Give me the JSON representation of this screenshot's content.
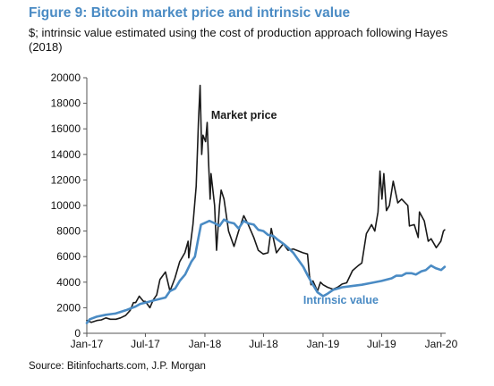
{
  "figure": {
    "title": "Figure 9: Bitcoin market price and intrinsic value",
    "subtitle": "$; intrinsic value estimated using the cost of production approach following Hayes (2018)",
    "source": "Source: Bitinfocharts.com, J.P. Morgan"
  },
  "chart_data": {
    "type": "line",
    "title": "Figure 9: Bitcoin market price and intrinsic value",
    "subtitle": "$; intrinsic value estimated using the cost of production approach following Hayes (2018)",
    "xlabel": "",
    "ylabel": "",
    "x_ticks": [
      "Jan-17",
      "Jul-17",
      "Jan-18",
      "Jul-18",
      "Jan-19",
      "Jul-19",
      "Jan-20"
    ],
    "x_range": [
      "2017-01-01",
      "2020-01-15"
    ],
    "y_ticks": [
      0,
      2000,
      4000,
      6000,
      8000,
      10000,
      12000,
      14000,
      16000,
      18000,
      20000
    ],
    "ylim": [
      0,
      20000
    ],
    "grid": false,
    "legend": "inline labels",
    "series": [
      {
        "name": "Market price",
        "color": "#1a1a1a",
        "points": [
          [
            "2017-01-01",
            1000
          ],
          [
            "2017-01-15",
            850
          ],
          [
            "2017-02-01",
            1000
          ],
          [
            "2017-02-15",
            1050
          ],
          [
            "2017-03-01",
            1200
          ],
          [
            "2017-03-15",
            1100
          ],
          [
            "2017-04-01",
            1100
          ],
          [
            "2017-04-15",
            1200
          ],
          [
            "2017-05-01",
            1400
          ],
          [
            "2017-05-15",
            1800
          ],
          [
            "2017-05-25",
            2400
          ],
          [
            "2017-06-01",
            2400
          ],
          [
            "2017-06-12",
            2900
          ],
          [
            "2017-06-25",
            2500
          ],
          [
            "2017-07-01",
            2500
          ],
          [
            "2017-07-15",
            2000
          ],
          [
            "2017-07-25",
            2600
          ],
          [
            "2017-08-05",
            3000
          ],
          [
            "2017-08-15",
            4200
          ],
          [
            "2017-09-01",
            4800
          ],
          [
            "2017-09-15",
            3300
          ],
          [
            "2017-09-30",
            4300
          ],
          [
            "2017-10-15",
            5600
          ],
          [
            "2017-10-31",
            6300
          ],
          [
            "2017-11-10",
            7200
          ],
          [
            "2017-11-12",
            5900
          ],
          [
            "2017-11-25",
            8500
          ],
          [
            "2017-12-05",
            11500
          ],
          [
            "2017-12-10",
            15000
          ],
          [
            "2017-12-12",
            16500
          ],
          [
            "2017-12-17",
            19400
          ],
          [
            "2017-12-22",
            14000
          ],
          [
            "2017-12-26",
            15500
          ],
          [
            "2018-01-03",
            15000
          ],
          [
            "2018-01-08",
            16500
          ],
          [
            "2018-01-12",
            13500
          ],
          [
            "2018-01-17",
            10500
          ],
          [
            "2018-01-20",
            12500
          ],
          [
            "2018-01-31",
            10000
          ],
          [
            "2018-02-06",
            6500
          ],
          [
            "2018-02-15",
            10000
          ],
          [
            "2018-02-20",
            11200
          ],
          [
            "2018-03-01",
            10500
          ],
          [
            "2018-03-15",
            8000
          ],
          [
            "2018-04-01",
            6800
          ],
          [
            "2018-04-15",
            8000
          ],
          [
            "2018-05-01",
            9200
          ],
          [
            "2018-05-15",
            8500
          ],
          [
            "2018-06-01",
            7500
          ],
          [
            "2018-06-15",
            6500
          ],
          [
            "2018-06-30",
            6200
          ],
          [
            "2018-07-15",
            6300
          ],
          [
            "2018-07-25",
            8200
          ],
          [
            "2018-08-10",
            6300
          ],
          [
            "2018-08-31",
            7000
          ],
          [
            "2018-09-15",
            6500
          ],
          [
            "2018-10-01",
            6600
          ],
          [
            "2018-10-31",
            6300
          ],
          [
            "2018-11-14",
            6200
          ],
          [
            "2018-11-20",
            4500
          ],
          [
            "2018-11-25",
            3800
          ],
          [
            "2018-12-01",
            4100
          ],
          [
            "2018-12-15",
            3300
          ],
          [
            "2018-12-24",
            4000
          ],
          [
            "2019-01-01",
            3800
          ],
          [
            "2019-01-15",
            3600
          ],
          [
            "2019-02-01",
            3450
          ],
          [
            "2019-02-15",
            3600
          ],
          [
            "2019-03-01",
            3850
          ],
          [
            "2019-03-15",
            3950
          ],
          [
            "2019-04-02",
            4900
          ],
          [
            "2019-04-20",
            5300
          ],
          [
            "2019-05-01",
            5500
          ],
          [
            "2019-05-15",
            7800
          ],
          [
            "2019-05-31",
            8500
          ],
          [
            "2019-06-10",
            8000
          ],
          [
            "2019-06-20",
            9500
          ],
          [
            "2019-06-26",
            12700
          ],
          [
            "2019-07-02",
            10500
          ],
          [
            "2019-07-08",
            12500
          ],
          [
            "2019-07-16",
            9600
          ],
          [
            "2019-07-25",
            10000
          ],
          [
            "2019-08-06",
            11900
          ],
          [
            "2019-08-20",
            10200
          ],
          [
            "2019-09-01",
            10500
          ],
          [
            "2019-09-20",
            10000
          ],
          [
            "2019-09-25",
            8400
          ],
          [
            "2019-10-10",
            8500
          ],
          [
            "2019-10-22",
            7500
          ],
          [
            "2019-10-26",
            9500
          ],
          [
            "2019-11-10",
            8800
          ],
          [
            "2019-11-22",
            7200
          ],
          [
            "2019-12-01",
            7400
          ],
          [
            "2019-12-17",
            6700
          ],
          [
            "2019-12-31",
            7200
          ],
          [
            "2020-01-08",
            8000
          ],
          [
            "2020-01-12",
            8100
          ]
        ]
      },
      {
        "name": "Intrinsic value",
        "color": "#4a8bc4",
        "points": [
          [
            "2017-01-01",
            800
          ],
          [
            "2017-01-10",
            1100
          ],
          [
            "2017-02-01",
            1300
          ],
          [
            "2017-03-01",
            1450
          ],
          [
            "2017-04-01",
            1550
          ],
          [
            "2017-05-01",
            1800
          ],
          [
            "2017-06-01",
            2100
          ],
          [
            "2017-06-15",
            2300
          ],
          [
            "2017-07-01",
            2400
          ],
          [
            "2017-08-01",
            2600
          ],
          [
            "2017-09-01",
            2800
          ],
          [
            "2017-09-15",
            3300
          ],
          [
            "2017-10-01",
            3500
          ],
          [
            "2017-10-15",
            4100
          ],
          [
            "2017-11-01",
            4600
          ],
          [
            "2017-11-20",
            5600
          ],
          [
            "2017-12-01",
            6000
          ],
          [
            "2017-12-10",
            7200
          ],
          [
            "2017-12-20",
            8500
          ],
          [
            "2018-01-15",
            8800
          ],
          [
            "2018-02-01",
            8600
          ],
          [
            "2018-02-15",
            8400
          ],
          [
            "2018-03-01",
            8900
          ],
          [
            "2018-03-15",
            8700
          ],
          [
            "2018-04-01",
            8600
          ],
          [
            "2018-04-15",
            8200
          ],
          [
            "2018-05-01",
            8800
          ],
          [
            "2018-05-15",
            8600
          ],
          [
            "2018-06-01",
            8500
          ],
          [
            "2018-06-15",
            8100
          ],
          [
            "2018-07-01",
            8000
          ],
          [
            "2018-07-15",
            7700
          ],
          [
            "2018-08-01",
            7600
          ],
          [
            "2018-08-15",
            7300
          ],
          [
            "2018-09-01",
            7000
          ],
          [
            "2018-09-15",
            6700
          ],
          [
            "2018-10-01",
            6300
          ],
          [
            "2018-10-15",
            5800
          ],
          [
            "2018-11-01",
            5200
          ],
          [
            "2018-11-15",
            4500
          ],
          [
            "2018-12-01",
            3800
          ],
          [
            "2018-12-15",
            3200
          ],
          [
            "2019-01-01",
            2900
          ],
          [
            "2019-01-15",
            3100
          ],
          [
            "2019-02-01",
            3400
          ],
          [
            "2019-03-01",
            3600
          ],
          [
            "2019-04-01",
            3700
          ],
          [
            "2019-05-01",
            3800
          ],
          [
            "2019-06-01",
            3950
          ],
          [
            "2019-07-01",
            4100
          ],
          [
            "2019-08-01",
            4300
          ],
          [
            "2019-08-15",
            4500
          ],
          [
            "2019-09-01",
            4500
          ],
          [
            "2019-09-15",
            4700
          ],
          [
            "2019-10-01",
            4700
          ],
          [
            "2019-10-15",
            4600
          ],
          [
            "2019-11-01",
            4850
          ],
          [
            "2019-11-15",
            4950
          ],
          [
            "2019-12-01",
            5300
          ],
          [
            "2019-12-15",
            5100
          ],
          [
            "2020-01-01",
            4950
          ],
          [
            "2020-01-12",
            5200
          ]
        ]
      }
    ],
    "annotations": [
      {
        "text": "Market price",
        "x": "2018-01-20",
        "y": 16800,
        "color": "#1a1a1a"
      },
      {
        "text": "Intrinsic value",
        "x": "2018-11-01",
        "y": 2300,
        "color": "#4a8bc4"
      }
    ]
  }
}
